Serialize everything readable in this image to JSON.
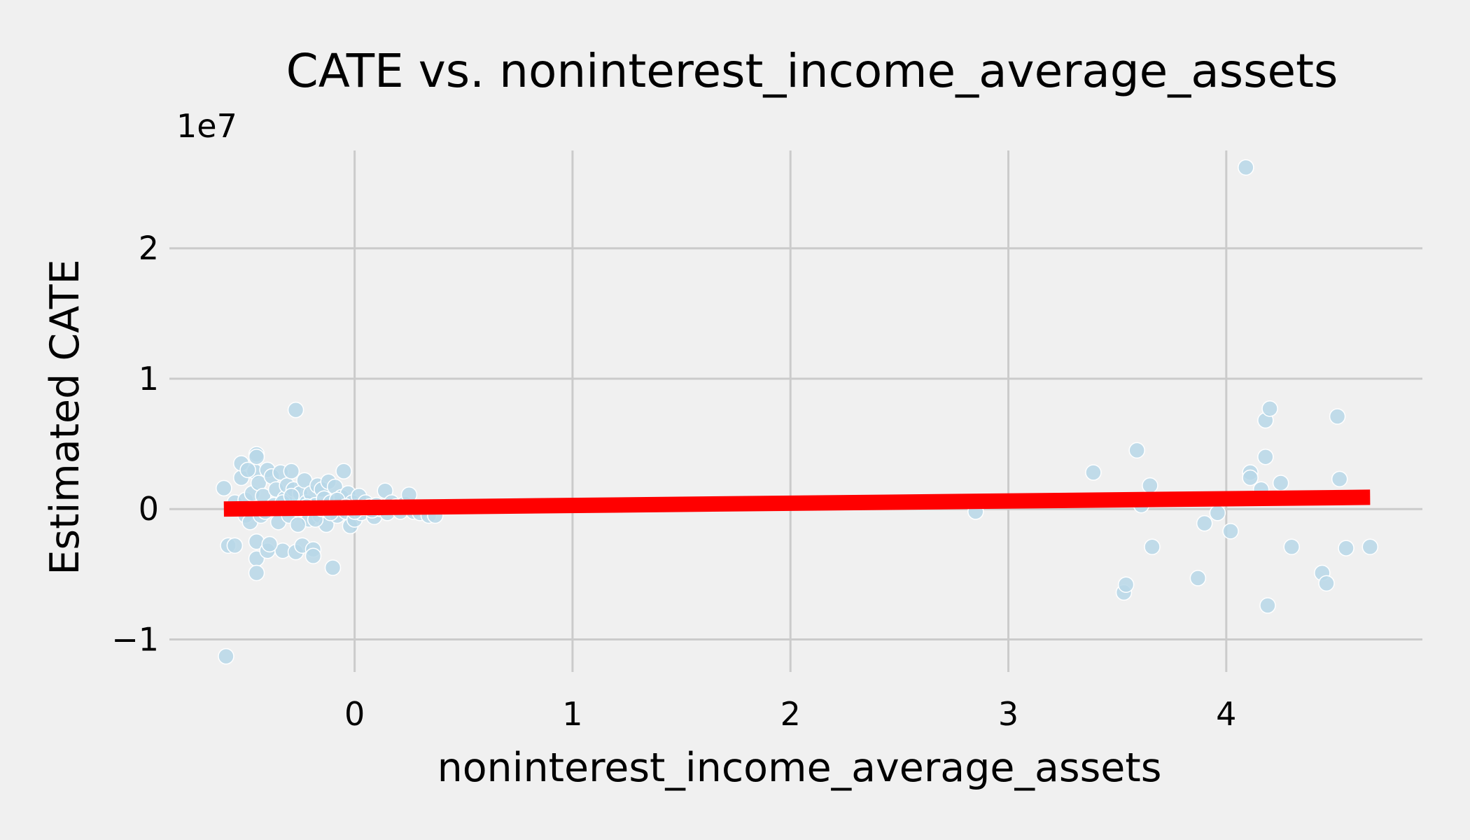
{
  "chart_data": {
    "type": "scatter",
    "title": "CATE vs. noninterest_income_average_assets",
    "xlabel": "noninterest_income_average_assets",
    "ylabel": "Estimated CATE",
    "y_offset_label": "1e7",
    "xlim": [
      -0.85,
      4.9
    ],
    "ylim": [
      -1.25,
      2.75
    ],
    "y_scale_factor": 10000000,
    "xticks": [
      0,
      1,
      2,
      3,
      4
    ],
    "yticks": [
      -1,
      0,
      1,
      2
    ],
    "xtick_labels": [
      "0",
      "1",
      "2",
      "3",
      "4"
    ],
    "ytick_labels": [
      "−1",
      "0",
      "1",
      "2"
    ],
    "grid": true,
    "points": [
      [
        -0.6,
        0.16
      ],
      [
        -0.59,
        -1.13
      ],
      [
        -0.58,
        -0.28
      ],
      [
        -0.55,
        -0.28
      ],
      [
        -0.55,
        0.05
      ],
      [
        -0.52,
        0.24
      ],
      [
        -0.52,
        0.35
      ],
      [
        -0.5,
        0.07
      ],
      [
        -0.5,
        -0.05
      ],
      [
        -0.48,
        -0.1
      ],
      [
        -0.47,
        0.12
      ],
      [
        -0.46,
        0.29
      ],
      [
        -0.45,
        0.42
      ],
      [
        -0.45,
        0.4
      ],
      [
        -0.45,
        -0.25
      ],
      [
        -0.45,
        -0.38
      ],
      [
        -0.45,
        -0.49
      ],
      [
        -0.44,
        0.2
      ],
      [
        -0.43,
        -0.05
      ],
      [
        -0.42,
        0.1
      ],
      [
        -0.4,
        0.3
      ],
      [
        -0.4,
        -0.32
      ],
      [
        -0.38,
        0.25
      ],
      [
        -0.37,
        0.03
      ],
      [
        -0.36,
        0.15
      ],
      [
        -0.35,
        -0.1
      ],
      [
        -0.34,
        0.28
      ],
      [
        -0.33,
        -0.32
      ],
      [
        -0.32,
        0.08
      ],
      [
        -0.31,
        0.18
      ],
      [
        -0.3,
        -0.05
      ],
      [
        -0.29,
        0.29
      ],
      [
        -0.28,
        0.15
      ],
      [
        -0.27,
        0.76
      ],
      [
        -0.27,
        -0.33
      ],
      [
        -0.26,
        0.0
      ],
      [
        -0.25,
        0.12
      ],
      [
        -0.24,
        -0.28
      ],
      [
        -0.23,
        0.22
      ],
      [
        -0.22,
        0.05
      ],
      [
        -0.21,
        -0.08
      ],
      [
        -0.2,
        0.12
      ],
      [
        -0.19,
        -0.31
      ],
      [
        -0.19,
        -0.36
      ],
      [
        -0.18,
        0.03
      ],
      [
        -0.17,
        0.18
      ],
      [
        -0.16,
        -0.05
      ],
      [
        -0.15,
        0.15
      ],
      [
        -0.14,
        0.08
      ],
      [
        -0.13,
        -0.12
      ],
      [
        -0.12,
        0.21
      ],
      [
        -0.11,
        0.05
      ],
      [
        -0.1,
        -0.45
      ],
      [
        -0.09,
        0.17
      ],
      [
        -0.08,
        -0.05
      ],
      [
        -0.07,
        0.03
      ],
      [
        -0.06,
        0.09
      ],
      [
        -0.05,
        0.29
      ],
      [
        -0.04,
        -0.02
      ],
      [
        -0.03,
        0.12
      ],
      [
        -0.02,
        -0.13
      ],
      [
        -0.01,
        0.05
      ],
      [
        0.0,
        -0.08
      ],
      [
        0.01,
        0.02
      ],
      [
        0.02,
        0.1
      ],
      [
        0.03,
        -0.03
      ],
      [
        0.05,
        0.05
      ],
      [
        0.07,
        0.02
      ],
      [
        0.09,
        -0.06
      ],
      [
        0.1,
        0.03
      ],
      [
        0.12,
        0.0
      ],
      [
        0.14,
        0.14
      ],
      [
        0.15,
        -0.03
      ],
      [
        0.17,
        0.05
      ],
      [
        0.19,
        0.02
      ],
      [
        0.21,
        -0.02
      ],
      [
        0.23,
        0.04
      ],
      [
        0.25,
        0.11
      ],
      [
        0.27,
        -0.02
      ],
      [
        0.3,
        -0.03
      ],
      [
        0.34,
        -0.05
      ],
      [
        0.37,
        -0.05
      ],
      [
        -0.49,
        0.3
      ],
      [
        -0.41,
        -0.02
      ],
      [
        -0.39,
        -0.27
      ],
      [
        -0.33,
        0.05
      ],
      [
        -0.29,
        0.1
      ],
      [
        -0.26,
        -0.12
      ],
      [
        -0.22,
        0.02
      ],
      [
        -0.18,
        -0.08
      ],
      [
        -0.15,
        0.0
      ],
      [
        -0.11,
        -0.03
      ],
      [
        -0.08,
        0.07
      ],
      [
        -0.04,
        0.02
      ],
      [
        0.0,
        -0.02
      ],
      [
        0.04,
        0.01
      ],
      [
        0.08,
        -0.01
      ],
      [
        2.85,
        -0.02
      ],
      [
        3.39,
        0.28
      ],
      [
        3.53,
        -0.64
      ],
      [
        3.54,
        -0.58
      ],
      [
        3.59,
        0.45
      ],
      [
        3.61,
        0.03
      ],
      [
        3.65,
        0.18
      ],
      [
        3.66,
        -0.29
      ],
      [
        3.87,
        -0.53
      ],
      [
        3.9,
        -0.11
      ],
      [
        3.96,
        -0.03
      ],
      [
        4.02,
        -0.17
      ],
      [
        4.09,
        2.62
      ],
      [
        4.11,
        0.28
      ],
      [
        4.11,
        0.24
      ],
      [
        4.16,
        0.15
      ],
      [
        4.18,
        0.4
      ],
      [
        4.18,
        0.68
      ],
      [
        4.19,
        -0.74
      ],
      [
        4.2,
        0.77
      ],
      [
        4.25,
        0.2
      ],
      [
        4.3,
        -0.29
      ],
      [
        4.44,
        -0.49
      ],
      [
        4.46,
        -0.57
      ],
      [
        4.51,
        0.71
      ],
      [
        4.52,
        0.23
      ],
      [
        4.55,
        -0.3
      ],
      [
        4.66,
        -0.29
      ]
    ],
    "trend_line": {
      "x": [
        -0.6,
        4.66
      ],
      "y": [
        0.0,
        0.09
      ]
    }
  }
}
